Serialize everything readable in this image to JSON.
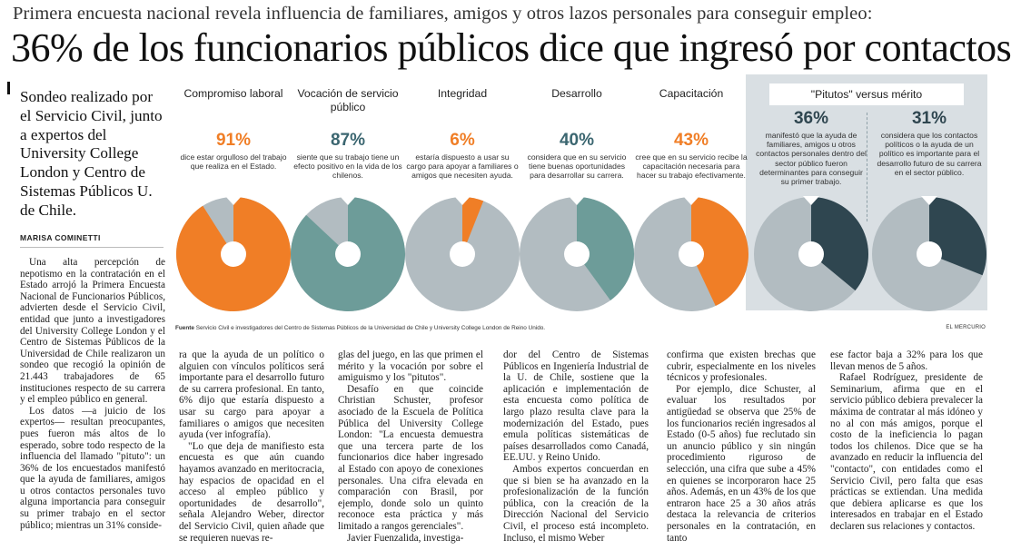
{
  "kicker": "Primera encuesta nacional revela influencia de familiares, amigos y otros lazos personales para conseguir empleo:",
  "headline": "36% de los funcionarios públicos dice que ingresó por contactos",
  "lede": "Sondeo realizado por el Servicio Civil, junto a expertos del University College London y Centro de Sistemas Públicos U. de Chile.",
  "author": "MARISA COMINETTI",
  "colors": {
    "orange": "#f07e26",
    "teal": "#6d9c99",
    "grey": "#b2bcc1",
    "slate": "#2f4650",
    "panel_bg": "#d9dfe3"
  },
  "infographic": {
    "panels": [
      {
        "title": "Compromiso laboral",
        "value": "91%",
        "desc": "dice estar orgulloso del trabajo que realiza en el Estado.",
        "share": 0.91,
        "color": "orange"
      },
      {
        "title": "Vocación de servicio público",
        "value": "87%",
        "desc": "siente que su trabajo tiene un efecto positivo en la vida de los chilenos.",
        "share": 0.87,
        "color": "teal"
      },
      {
        "title": "Integridad",
        "value": "6%",
        "desc": "estaría dispuesto a usar su cargo para apoyar a familiares o amigos que necesiten ayuda.",
        "share": 0.06,
        "color": "orange"
      },
      {
        "title": "Desarrollo",
        "value": "40%",
        "desc": "considera que en su servicio tiene buenas oportunidades para desarrollar su carrera.",
        "share": 0.4,
        "color": "teal"
      },
      {
        "title": "Capacitación",
        "value": "43%",
        "desc": "cree que en su servicio recibe la capacitación necesaria para hacer su trabajo efectivamente.",
        "share": 0.43,
        "color": "orange"
      }
    ],
    "versus": {
      "title": "\"Pitutos\" versus mérito",
      "items": [
        {
          "value": "36%",
          "desc": "manifestó que la ayuda de familiares, amigos u otros contactos personales dentro del sector público fueron determinantes para conseguir su primer trabajo.",
          "share": 0.36,
          "color": "slate"
        },
        {
          "value": "31%",
          "desc": "considera que los contactos políticos o la ayuda de un político es importante para el desarrollo futuro de su carrera en el sector público.",
          "share": 0.31,
          "color": "slate"
        }
      ]
    },
    "source_label": "Fuente",
    "source": "Servicio Civil e investigadores del Centro de Sistemas Públicos de la Universidad de Chile y University College London de Reino Unido.",
    "credit": "EL MERCURIO"
  },
  "columns": {
    "c1": [
      "Una alta percepción de nepotismo en la contratación en el Estado arrojó la Primera Encuesta Nacional de Funcionarios Públicos, advierten desde el Servicio Civil, entidad que junto a investigadores del University College London y el Centro de Sistemas Públicos de la Universidad de Chile realizaron un sondeo que recogió la opinión de 21.443 trabajadores de 65 instituciones respecto de su carrera y el empleo público en general.",
      "Los datos —a juicio de los expertos— resultan preocupantes, pues fueron más altos de lo esperado, sobre todo respecto de la influencia del llamado \"pituto\": un 36% de los encuestados manifestó que la ayuda de familiares, amigos u otros contactos personales tuvo alguna importancia para conseguir su primer trabajo en el sector público; mientras un 31% conside-"
    ],
    "c2": [
      "ra que la ayuda de un político o alguien con vínculos políticos será importante para el desarrollo futuro de su carrera profesional. En tanto, 6% dijo que estaría dispuesto a usar su cargo para apoyar a familiares o amigos que necesiten ayuda (ver infografía).",
      "\"Lo que deja de manifiesto esta encuesta es que aún cuando hayamos avanzado en meritocracia, hay espacios de opacidad en el acceso al empleo público y oportunidades de desarrollo\", señala Alejandro Weber, director del Servicio Civil, quien añade que se requieren nuevas re-"
    ],
    "c3": [
      "glas del juego, en las que primen el mérito y la vocación por sobre el amiguismo y los \"pitutos\".",
      "Desafío en que coincide Christian Schuster, profesor asociado de la Escuela de Política Pública del University College London: \"La encuesta demuestra que una tercera parte de los funcionarios dice haber ingresado al Estado con apoyo de conexiones personales. Una cifra elevada en comparación con Brasil, por ejemplo, donde solo un quinto reconoce esta práctica y más limitado a rangos gerenciales\".",
      "Javier Fuenzalida, investiga-"
    ],
    "c4": [
      "dor del Centro de Sistemas Públicos en Ingeniería Industrial de la U. de Chile, sostiene que la aplicación e implementación de esta encuesta como política de largo plazo resulta clave para la modernización del Estado, pues emula políticas sistemáticas de países desarrollados como Canadá, EE.UU. y Reino Unido.",
      "Ambos expertos concuerdan en que si bien se ha avanzado en la profesionalización de la función pública, con la creación de la Dirección Nacional del Servicio Civil, el proceso está incompleto. Incluso, el mismo Weber"
    ],
    "c5": [
      "confirma que existen brechas que cubrir, especialmente en los niveles técnicos y profesionales.",
      "Por ejemplo, dice Schuster, al evaluar los resultados por antigüedad se observa que 25% de los funcionarios recién ingresados al Estado (0-5 años) fue reclutado sin un anuncio público y sin ningún procedimiento riguroso de selección, una cifra que sube a 45% en quienes se incorporaron hace 25 años. Además, en un 43% de los que entraron hace 25 a 30 años atrás destaca la relevancia de criterios personales en la contratación, en tanto"
    ],
    "c6": [
      "ese factor baja a 32% para los que llevan menos de 5 años.",
      "Rafael Rodríguez, presidente de Seminarium, afirma que en el servicio público debiera prevalecer la máxima de contratar al más idóneo y no al con más amigos, porque el costo de la ineficiencia lo pagan todos los chilenos. Dice que se ha avanzado en reducir la influencia del \"contacto\", con entidades como el Servicio Civil, pero falta que esas prácticas se extiendan. Una medida que debiera aplicarse es que los interesados en trabajar en el Estado declaren sus relaciones y contactos."
    ]
  }
}
